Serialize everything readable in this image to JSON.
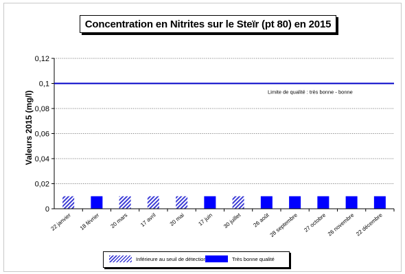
{
  "chart_data": {
    "type": "bar",
    "title": "Concentration en Nitrites sur le Steïr (pt 80) en 2015",
    "ylabel": "Valeurs 2015 (mg/l)",
    "xlabel": "",
    "ylim": [
      0,
      0.12
    ],
    "yticks": [
      "0",
      "0,02",
      "0,04",
      "0,06",
      "0,08",
      "0,1",
      "0,12"
    ],
    "ytick_values": [
      0,
      0.02,
      0.04,
      0.06,
      0.08,
      0.1,
      0.12
    ],
    "grid": true,
    "categories": [
      "22 janvier",
      "18 février",
      "20 mars",
      "17 avril",
      "20 mai",
      "17 juin",
      "30 juillet",
      "26 août",
      "28 septembre",
      "27 octobre",
      "26 novembre",
      "22 décembre"
    ],
    "values": [
      0.01,
      0.01,
      0.01,
      0.01,
      0.01,
      0.01,
      0.01,
      0.01,
      0.01,
      0.01,
      0.01,
      0.01
    ],
    "classes": [
      "inf",
      "tbq",
      "inf",
      "inf",
      "inf",
      "tbq",
      "inf",
      "tbq",
      "tbq",
      "tbq",
      "tbq",
      "tbq"
    ],
    "threshold": {
      "value": 0.1,
      "label": "Limite de qualité  : très bonne - bonne",
      "color": "#0000c8"
    },
    "legend": {
      "placement": "bottom",
      "items": [
        {
          "key": "inf",
          "label": "Inférieure au seuil de détection",
          "color": "#3b3bd6",
          "pattern": "hatch"
        },
        {
          "key": "tbq",
          "label": "Très bonne qualité",
          "color": "#0000ff",
          "pattern": "solid"
        }
      ]
    }
  }
}
